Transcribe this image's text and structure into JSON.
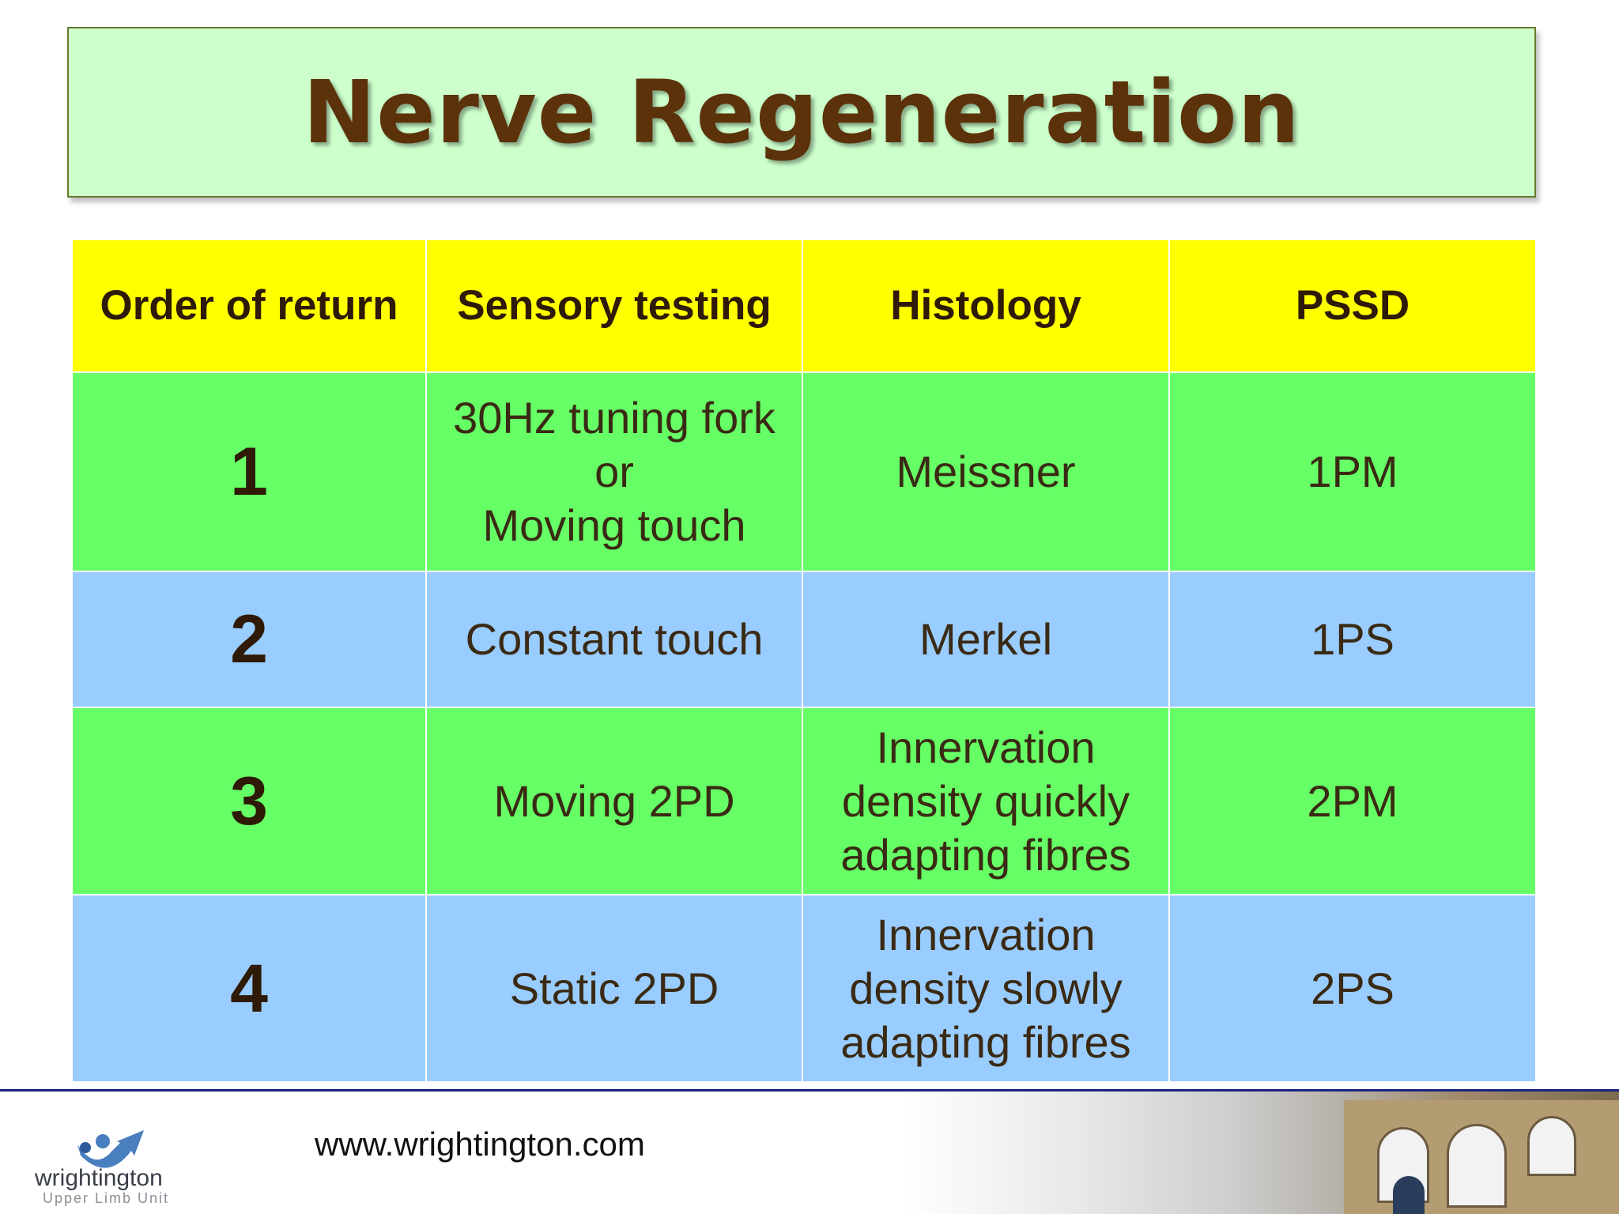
{
  "title": "Nerve Regeneration",
  "table": {
    "headers": [
      "Order of return",
      "Sensory testing",
      "Histology",
      "PSSD"
    ],
    "rows": [
      {
        "order": "1",
        "sensory": [
          "30Hz tuning fork",
          "or",
          "Moving touch"
        ],
        "histology": [
          "Meissner"
        ],
        "pssd": "1PM",
        "color": "#66ff66"
      },
      {
        "order": "2",
        "sensory": [
          "Constant touch"
        ],
        "histology": [
          "Merkel"
        ],
        "pssd": "1PS",
        "color": "#99ccff"
      },
      {
        "order": "3",
        "sensory": [
          "Moving 2PD"
        ],
        "histology": [
          "Innervation",
          "density quickly",
          "adapting fibres"
        ],
        "pssd": "2PM",
        "color": "#66ff66"
      },
      {
        "order": "4",
        "sensory": [
          "Static 2PD"
        ],
        "histology": [
          "Innervation",
          "density slowly",
          "adapting fibres"
        ],
        "pssd": "2PS",
        "color": "#99ccff"
      }
    ],
    "header_color": "#ffff00"
  },
  "footer": {
    "url": "www.wrightington.com",
    "logo_name": "wrightington",
    "logo_subtitle": "Upper Limb Unit",
    "logo_icon": "person-arrow-logo-icon"
  },
  "colors": {
    "title_box": "#ccffcc",
    "title_text": "#5c320a",
    "footer_rule": "#1a237e"
  }
}
